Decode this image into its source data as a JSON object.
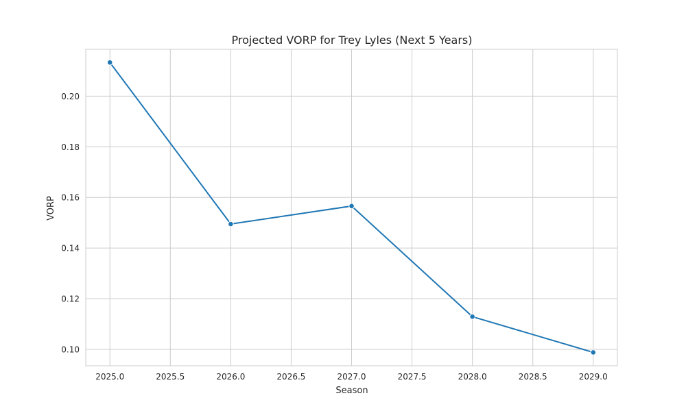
{
  "chart_data": {
    "type": "line",
    "title": "Projected VORP for Trey Lyles (Next 5 Years)",
    "xlabel": "Season",
    "ylabel": "VORP",
    "xlim": [
      2024.8,
      2029.2
    ],
    "ylim": [
      0.0935,
      0.2185
    ],
    "xticks": [
      2025.0,
      2025.5,
      2026.0,
      2026.5,
      2027.0,
      2027.5,
      2028.0,
      2028.5,
      2029.0
    ],
    "xtick_labels": [
      "2025.0",
      "2025.5",
      "2026.0",
      "2026.5",
      "2027.0",
      "2027.5",
      "2028.0",
      "2028.5",
      "2029.0"
    ],
    "yticks": [
      0.1,
      0.12,
      0.14,
      0.16,
      0.18,
      0.2
    ],
    "ytick_labels": [
      "0.10",
      "0.12",
      "0.14",
      "0.16",
      "0.18",
      "0.20"
    ],
    "grid": true,
    "series": [
      {
        "color": "#1f77b4",
        "marker": "circle",
        "x": [
          2025,
          2026,
          2027,
          2028,
          2029
        ],
        "y": [
          0.2133,
          0.1495,
          0.1566,
          0.1129,
          0.0988
        ]
      }
    ]
  }
}
